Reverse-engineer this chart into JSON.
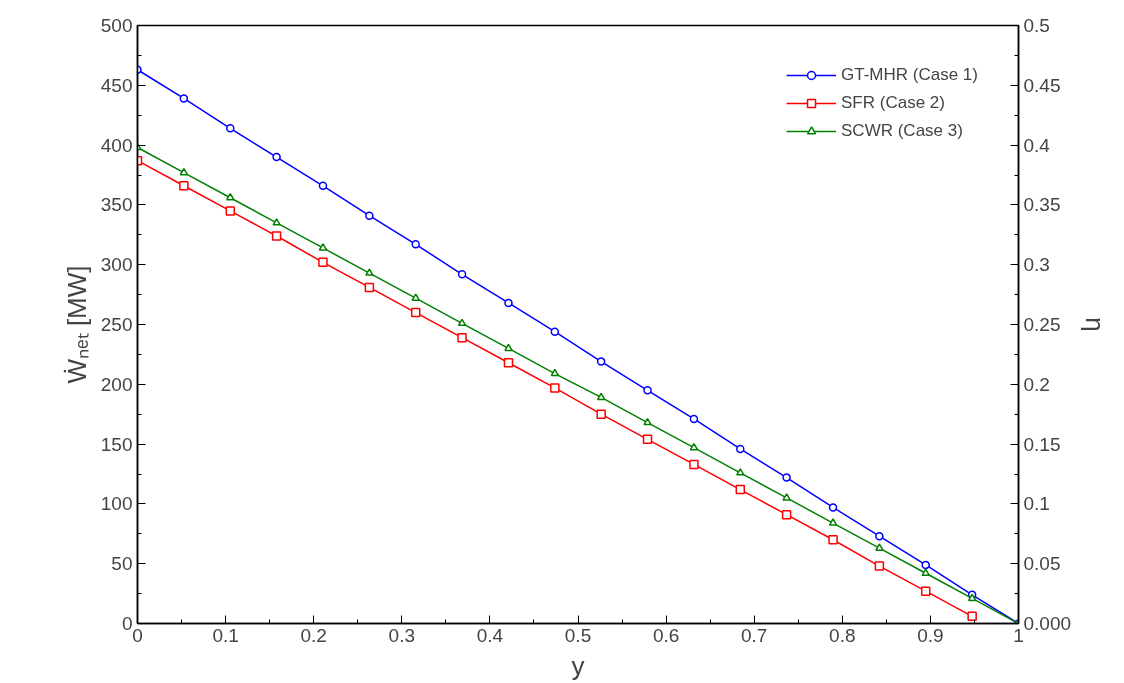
{
  "chart_data": {
    "type": "line",
    "xlabel": "y",
    "ylabel": "Ẇₙₑₜ [MW]",
    "y2label": "η",
    "x": [
      0,
      0.0526,
      0.1053,
      0.1579,
      0.2105,
      0.2632,
      0.3158,
      0.3684,
      0.4211,
      0.4737,
      0.5263,
      0.5789,
      0.6316,
      0.6842,
      0.7368,
      0.7895,
      0.8421,
      0.8947,
      0.9474,
      1
    ],
    "series": [
      {
        "name": "GT-MHR (Case 1)",
        "color": "#0000ff",
        "marker": "circle",
        "values": [
          463,
          439,
          414,
          390,
          366,
          341,
          317,
          292,
          268,
          244,
          219,
          195,
          171,
          146,
          122,
          97,
          73,
          49,
          24,
          0
        ]
      },
      {
        "name": "SFR (Case 2)",
        "color": "#ff0000",
        "marker": "square",
        "values": [
          387,
          366,
          345,
          324,
          302,
          281,
          260,
          239,
          218,
          197,
          175,
          154,
          133,
          112,
          91,
          70,
          48,
          27,
          6,
          null
        ]
      },
      {
        "name": "SCWR (Case 3)",
        "color": "#008000",
        "marker": "triangle",
        "values": [
          398,
          377,
          356,
          335,
          314,
          293,
          272,
          251,
          230,
          209,
          189,
          168,
          147,
          126,
          105,
          84,
          63,
          42,
          21,
          0
        ]
      }
    ],
    "xlim": [
      0,
      1
    ],
    "xticks": [
      0,
      0.1,
      0.2,
      0.3,
      0.4,
      0.5,
      0.6,
      0.7,
      0.8,
      0.9,
      1
    ],
    "ylim": [
      0,
      500
    ],
    "yticks": [
      0,
      50,
      100,
      150,
      200,
      250,
      300,
      350,
      400,
      450,
      500
    ],
    "y2lim": [
      0,
      0.5
    ],
    "y2ticks": [
      {
        "value": 0,
        "label": "0.000"
      },
      0.05,
      0.1,
      0.15,
      0.2,
      0.25,
      0.3,
      0.35,
      0.4,
      0.45,
      0.5
    ],
    "grid": false,
    "legend": "top right",
    "line_style": "solid"
  }
}
